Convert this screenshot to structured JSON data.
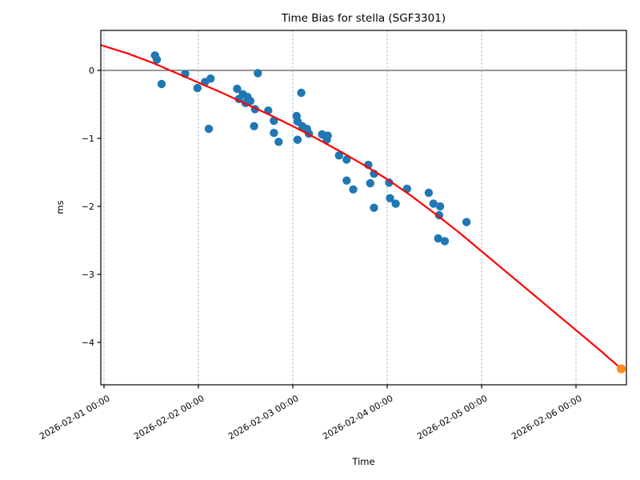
{
  "chart_data": {
    "type": "scatter",
    "title": "Time Bias for stella (SGF3301)",
    "xlabel": "Time",
    "ylabel": "ms",
    "grid": "vertical dashed gridlines only",
    "legend": "none",
    "x_axis": {
      "unit_of_point_x_values": "days since 2026-02-01 00:00",
      "range_days": [
        -0.034,
        5.534
      ],
      "ticks": [
        {
          "day": 0,
          "label": "2026-02-01 00:00"
        },
        {
          "day": 1,
          "label": "2026-02-02 00:00"
        },
        {
          "day": 2,
          "label": "2026-02-03 00:00"
        },
        {
          "day": 3,
          "label": "2026-02-04 00:00"
        },
        {
          "day": 4,
          "label": "2026-02-05 00:00"
        },
        {
          "day": 5,
          "label": "2026-02-06 00:00"
        }
      ],
      "tick_label_rotation_deg": 30
    },
    "y_axis": {
      "range": [
        -4.62,
        0.59
      ],
      "ticks": [
        {
          "value": 0,
          "label": "0"
        },
        {
          "value": -1,
          "label": "−1"
        },
        {
          "value": -2,
          "label": "−2"
        },
        {
          "value": -3,
          "label": "−3"
        },
        {
          "value": -4,
          "label": "−4"
        }
      ],
      "zero_line": true
    },
    "series": [
      {
        "name": "bias observations",
        "kind": "scatter",
        "color": "#1f77b4",
        "marker_radius_px": 5.2,
        "points_t_ms": [
          [
            0.54,
            0.22
          ],
          [
            0.56,
            0.16
          ],
          [
            0.61,
            -0.2
          ],
          [
            0.86,
            -0.05
          ],
          [
            0.99,
            -0.26
          ],
          [
            1.07,
            -0.17
          ],
          [
            1.13,
            -0.12
          ],
          [
            1.11,
            -0.86
          ],
          [
            1.41,
            -0.27
          ],
          [
            1.43,
            -0.42
          ],
          [
            1.47,
            -0.35
          ],
          [
            1.5,
            -0.48
          ],
          [
            1.52,
            -0.39
          ],
          [
            1.55,
            -0.45
          ],
          [
            1.59,
            -0.82
          ],
          [
            1.6,
            -0.57
          ],
          [
            1.63,
            -0.04
          ],
          [
            1.74,
            -0.59
          ],
          [
            1.8,
            -0.74
          ],
          [
            1.8,
            -0.92
          ],
          [
            1.85,
            -1.05
          ],
          [
            2.04,
            -0.67
          ],
          [
            2.05,
            -0.75
          ],
          [
            2.05,
            -1.02
          ],
          [
            2.09,
            -0.33
          ],
          [
            2.1,
            -0.82
          ],
          [
            2.15,
            -0.86
          ],
          [
            2.17,
            -0.93
          ],
          [
            2.31,
            -0.94
          ],
          [
            2.36,
            -1.02
          ],
          [
            2.37,
            -0.96
          ],
          [
            2.49,
            -1.25
          ],
          [
            2.57,
            -1.31
          ],
          [
            2.57,
            -1.62
          ],
          [
            2.64,
            -1.75
          ],
          [
            2.8,
            -1.39
          ],
          [
            2.82,
            -1.66
          ],
          [
            2.86,
            -1.52
          ],
          [
            2.86,
            -2.02
          ],
          [
            3.02,
            -1.65
          ],
          [
            3.03,
            -1.88
          ],
          [
            3.09,
            -1.96
          ],
          [
            3.21,
            -1.74
          ],
          [
            3.44,
            -1.8
          ],
          [
            3.49,
            -1.96
          ],
          [
            3.54,
            -2.47
          ],
          [
            3.55,
            -2.13
          ],
          [
            3.56,
            -2.0
          ],
          [
            3.61,
            -2.51
          ],
          [
            3.84,
            -2.23
          ]
        ]
      },
      {
        "name": "polynomial fit curve",
        "kind": "line",
        "color": "#ff0000",
        "stroke_width_px": 2.2,
        "points_t_ms": [
          [
            -0.03,
            0.37
          ],
          [
            0.25,
            0.25
          ],
          [
            0.5,
            0.12
          ],
          [
            0.75,
            -0.03
          ],
          [
            1.0,
            -0.18
          ],
          [
            1.25,
            -0.33
          ],
          [
            1.5,
            -0.49
          ],
          [
            1.75,
            -0.65
          ],
          [
            2.0,
            -0.82
          ],
          [
            2.25,
            -1.0
          ],
          [
            2.5,
            -1.19
          ],
          [
            2.75,
            -1.39
          ],
          [
            3.0,
            -1.6
          ],
          [
            3.25,
            -1.84
          ],
          [
            3.5,
            -2.1
          ],
          [
            3.75,
            -2.37
          ],
          [
            4.0,
            -2.66
          ],
          [
            4.25,
            -2.95
          ],
          [
            4.5,
            -3.24
          ],
          [
            4.75,
            -3.53
          ],
          [
            5.0,
            -3.82
          ],
          [
            5.25,
            -4.11
          ],
          [
            5.48,
            -4.39
          ]
        ]
      },
      {
        "name": "predicted point",
        "kind": "scatter",
        "color": "#ff8c1a",
        "marker_radius_px": 5.6,
        "points_t_ms": [
          [
            5.48,
            -4.39
          ]
        ]
      }
    ]
  },
  "colors": {
    "background": "#ffffff",
    "plot_border": "#000000",
    "gridline": "#8fc3da",
    "zero_line": "#333333",
    "tick": "#000000",
    "text": "#000000"
  }
}
